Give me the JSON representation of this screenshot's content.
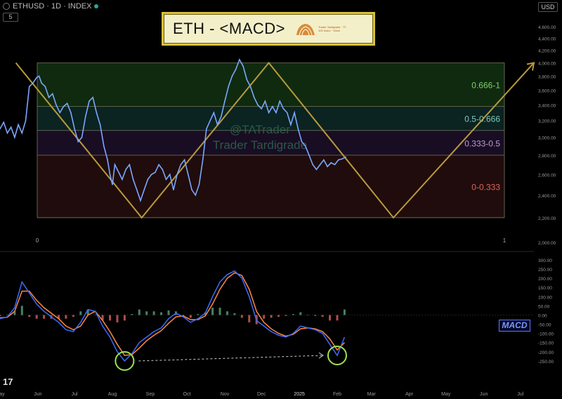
{
  "header": {
    "symbol": "ETHUSD · 1D · INDEX",
    "interval_btn": "5",
    "currency": "USD"
  },
  "title": {
    "text": "ETH - <MACD>",
    "logo_text": "Trader Tardigrade · TT 100 Index · Since"
  },
  "watermark": {
    "line1": "@TATrader",
    "line2": "Trader Tardigrade"
  },
  "macd_label": "MACD",
  "colors": {
    "price": "#7aa7ff",
    "fib_green": "#1e4d1e",
    "fib_teal": "#14403c",
    "fib_purple": "#2e1840",
    "fib_red": "#3a1515",
    "zigzag": "#b89a3c",
    "macd": "#3d6bff",
    "signal": "#ff8a3d",
    "hist_up": "#5aa37a",
    "hist_down": "#d9625b",
    "circle": "#9de24f"
  },
  "chart_data": [
    {
      "type": "line",
      "name": "price",
      "yscale": "log",
      "ylim": [
        2000,
        4700
      ],
      "y_ticks": [
        "4,600.00",
        "4,400.00",
        "4,200.00",
        "4,000.00",
        "3,800.00",
        "3,600.00",
        "3,400.00",
        "3,200.00",
        "3,000.00",
        "2,800.00",
        "2,600.00",
        "2,400.00",
        "2,200.00",
        "2,000.00"
      ],
      "y_tick_values": [
        4600,
        4400,
        4200,
        4000,
        3800,
        3600,
        3400,
        3200,
        3000,
        2800,
        2600,
        2400,
        2200,
        2000
      ],
      "x_ticks": [
        "May",
        "Jun",
        "Jul",
        "Aug",
        "Sep",
        "Oct",
        "Nov",
        "Dec",
        "2025",
        "Feb",
        "Mar",
        "Apr",
        "May",
        "Jun",
        "Jul"
      ],
      "x_tick_days": [
        0,
        31,
        61,
        92,
        123,
        153,
        184,
        214,
        245,
        276,
        304,
        335,
        365,
        396,
        426
      ],
      "x_range_days": [
        0,
        437
      ],
      "x": [
        0,
        3,
        6,
        9,
        12,
        15,
        18,
        21,
        24,
        27,
        30,
        32,
        34,
        37,
        40,
        43,
        46,
        49,
        52,
        55,
        58,
        61,
        64,
        67,
        70,
        73,
        76,
        79,
        82,
        85,
        88,
        90,
        92,
        94,
        96,
        98,
        100,
        103,
        106,
        109,
        112,
        115,
        118,
        121,
        124,
        127,
        130,
        133,
        136,
        139,
        142,
        145,
        148,
        151,
        154,
        157,
        160,
        163,
        166,
        169,
        172,
        175,
        178,
        181,
        184,
        187,
        190,
        193,
        196,
        199,
        202,
        205,
        208,
        211,
        214,
        217,
        220,
        223,
        226,
        229,
        232,
        235,
        238,
        241,
        244,
        247,
        250,
        253,
        256,
        259,
        262,
        265,
        268,
        271,
        274,
        277,
        280,
        283
      ],
      "y": [
        3100,
        3180,
        3050,
        3120,
        3000,
        3150,
        3050,
        3200,
        3650,
        3700,
        3780,
        3800,
        3700,
        3650,
        3500,
        3550,
        3400,
        3300,
        3380,
        3420,
        3300,
        3100,
        2950,
        3000,
        3250,
        3450,
        3500,
        3300,
        3150,
        2900,
        2750,
        2600,
        2500,
        2700,
        2650,
        2600,
        2550,
        2650,
        2700,
        2550,
        2450,
        2350,
        2450,
        2550,
        2600,
        2620,
        2700,
        2650,
        2550,
        2600,
        2450,
        2600,
        2700,
        2750,
        2600,
        2450,
        2400,
        2500,
        2750,
        3100,
        3200,
        3300,
        3150,
        3250,
        3450,
        3650,
        3800,
        3900,
        4050,
        3950,
        3750,
        3650,
        3500,
        3400,
        3350,
        3450,
        3300,
        3380,
        3300,
        3450,
        3350,
        3300,
        3150,
        3300,
        3100,
        2950,
        2900,
        2800,
        2700,
        2650,
        2700,
        2750,
        2680,
        2720,
        2700,
        2750,
        2760,
        2780
      ],
      "x_axis_end_labels": [
        "0",
        "1"
      ],
      "fib_zones": [
        {
          "label": "0.666-1",
          "from": 3380,
          "to": 4000
        },
        {
          "label": "0.5-0.666",
          "from": 3080,
          "to": 3380
        },
        {
          "label": "0.333-0.5",
          "from": 2800,
          "to": 3080
        },
        {
          "label": "0-0.333",
          "from": 2200,
          "to": 2800
        }
      ],
      "zigzag": {
        "x": [
          13,
          116,
          220,
          322,
          437
        ],
        "y": [
          4000,
          2200,
          4000,
          2200,
          4000
        ]
      }
    },
    {
      "type": "bar",
      "name": "MACD",
      "ylim": [
        -350,
        300
      ],
      "y_ticks": [
        "300.00",
        "250.00",
        "200.00",
        "150.00",
        "100.00",
        "50.00",
        "0.00",
        "-50.00",
        "-100.00",
        "-150.00",
        "-200.00",
        "-250.00"
      ],
      "y_tick_values": [
        300,
        250,
        200,
        150,
        100,
        50,
        0,
        -50,
        -100,
        -150,
        -200,
        -250
      ],
      "x": [
        0,
        6,
        12,
        18,
        24,
        30,
        36,
        42,
        48,
        54,
        60,
        66,
        72,
        78,
        84,
        90,
        96,
        102,
        108,
        114,
        120,
        126,
        132,
        138,
        144,
        150,
        156,
        162,
        168,
        174,
        180,
        186,
        192,
        198,
        204,
        210,
        216,
        222,
        228,
        234,
        240,
        246,
        252,
        258,
        264,
        270,
        276,
        282
      ],
      "macd": [
        -20,
        -10,
        40,
        180,
        120,
        60,
        20,
        -10,
        -40,
        -80,
        -90,
        -40,
        30,
        20,
        -60,
        -120,
        -200,
        -250,
        -210,
        -150,
        -120,
        -90,
        -70,
        -20,
        10,
        -10,
        -40,
        -20,
        10,
        100,
        180,
        220,
        240,
        200,
        100,
        -30,
        -60,
        -90,
        -110,
        -120,
        -100,
        -60,
        -70,
        -80,
        -100,
        -160,
        -220,
        -120
      ],
      "signal": [
        -15,
        -12,
        20,
        130,
        130,
        80,
        40,
        10,
        -20,
        -60,
        -80,
        -60,
        0,
        20,
        -30,
        -90,
        -160,
        -220,
        -215,
        -180,
        -140,
        -110,
        -85,
        -45,
        -10,
        -5,
        -25,
        -25,
        -5,
        60,
        140,
        200,
        230,
        215,
        140,
        20,
        -40,
        -75,
        -100,
        -115,
        -105,
        -75,
        -70,
        -75,
        -90,
        -130,
        -190,
        -150
      ],
      "histogram": [
        -5,
        2,
        20,
        50,
        -10,
        -20,
        -20,
        -20,
        -20,
        -20,
        -10,
        20,
        30,
        0,
        -30,
        -30,
        -40,
        -30,
        5,
        30,
        20,
        20,
        15,
        25,
        20,
        -5,
        -15,
        5,
        15,
        40,
        40,
        20,
        10,
        -15,
        -40,
        -50,
        -20,
        -15,
        -10,
        -5,
        5,
        15,
        0,
        -5,
        -10,
        -30,
        -30,
        30
      ]
    }
  ]
}
